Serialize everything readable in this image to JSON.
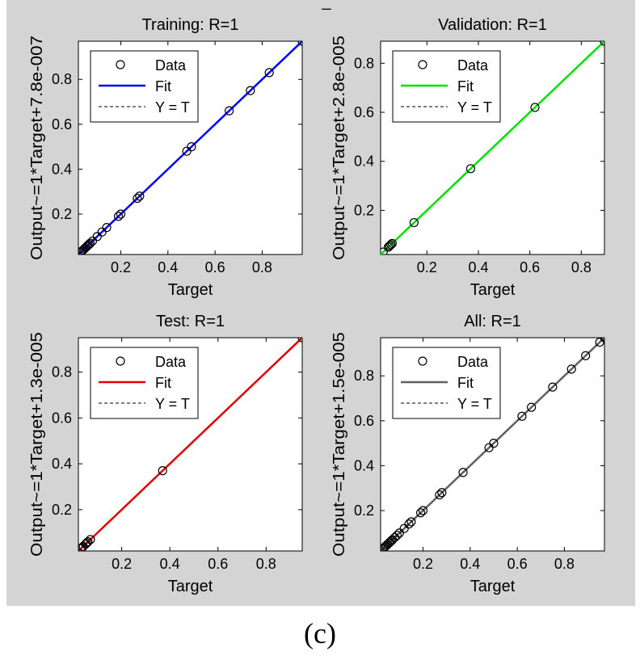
{
  "figure": {
    "caption": "(c)",
    "top_mark": "_",
    "colors": {
      "panel_bg": "#d4d4d4",
      "axes_bg": "#ffffff",
      "target_line": "#000000"
    }
  },
  "chart_data": [
    {
      "type": "scatter",
      "title": "Training: R=1",
      "xlabel": "Target",
      "ylabel": "Output~=1*Target+7.8e-007",
      "xlim": [
        0.02,
        0.97
      ],
      "ylim": [
        0.02,
        0.97
      ],
      "xticks": [
        0.2,
        0.4,
        0.6,
        0.8
      ],
      "yticks": [
        0.2,
        0.4,
        0.6,
        0.8
      ],
      "xtick_labels": [
        "0.2",
        "0.4",
        "0.6",
        "0.8"
      ],
      "ytick_labels": [
        "0.2",
        "0.4",
        "0.6",
        "0.8"
      ],
      "grid": false,
      "fit_color": "#0000ff",
      "fit": {
        "slope": 1,
        "intercept": 7.8e-07
      },
      "legend": {
        "placement": "top-left",
        "entries": [
          "Data",
          "Fit",
          "Y = T"
        ]
      },
      "x": [
        0.03,
        0.035,
        0.04,
        0.045,
        0.05,
        0.055,
        0.06,
        0.065,
        0.07,
        0.08,
        0.1,
        0.12,
        0.14,
        0.19,
        0.2,
        0.27,
        0.28,
        0.48,
        0.5,
        0.66,
        0.75,
        0.83,
        0.97
      ],
      "y": [
        0.03,
        0.035,
        0.04,
        0.045,
        0.05,
        0.055,
        0.06,
        0.065,
        0.07,
        0.08,
        0.1,
        0.12,
        0.14,
        0.19,
        0.2,
        0.27,
        0.28,
        0.48,
        0.5,
        0.66,
        0.75,
        0.83,
        0.97
      ]
    },
    {
      "type": "scatter",
      "title": "Validation: R=1",
      "xlabel": "Target",
      "ylabel": "Output~=1*Target+2.8e-005",
      "xlim": [
        0.02,
        0.89
      ],
      "ylim": [
        0.02,
        0.89
      ],
      "xticks": [
        0.2,
        0.4,
        0.6,
        0.8
      ],
      "yticks": [
        0.2,
        0.4,
        0.6,
        0.8
      ],
      "xtick_labels": [
        "0.2",
        "0.4",
        "0.6",
        "0.8"
      ],
      "ytick_labels": [
        "0.2",
        "0.4",
        "0.6",
        "0.8"
      ],
      "grid": false,
      "fit_color": "#00e000",
      "fit": {
        "slope": 1,
        "intercept": 2.8e-05
      },
      "legend": {
        "placement": "top-left",
        "entries": [
          "Data",
          "Fit",
          "Y = T"
        ]
      },
      "x": [
        0.03,
        0.05,
        0.055,
        0.06,
        0.065,
        0.15,
        0.37,
        0.62,
        0.89
      ],
      "y": [
        0.03,
        0.05,
        0.055,
        0.06,
        0.065,
        0.15,
        0.37,
        0.62,
        0.89
      ]
    },
    {
      "type": "scatter",
      "title": "Test: R=1",
      "xlabel": "Target",
      "ylabel": "Output~=1*Target+1.3e-005",
      "xlim": [
        0.02,
        0.95
      ],
      "ylim": [
        0.02,
        0.95
      ],
      "xticks": [
        0.2,
        0.4,
        0.6,
        0.8
      ],
      "yticks": [
        0.2,
        0.4,
        0.6,
        0.8
      ],
      "xtick_labels": [
        "0.2",
        "0.4",
        "0.6",
        "0.8"
      ],
      "ytick_labels": [
        "0.2",
        "0.4",
        "0.6",
        "0.8"
      ],
      "grid": false,
      "fit_color": "#e00000",
      "fit": {
        "slope": 1,
        "intercept": 1.3e-05
      },
      "legend": {
        "placement": "top-left",
        "entries": [
          "Data",
          "Fit",
          "Y = T"
        ]
      },
      "x": [
        0.03,
        0.035,
        0.04,
        0.05,
        0.055,
        0.06,
        0.07,
        0.37,
        0.95
      ],
      "y": [
        0.03,
        0.035,
        0.04,
        0.05,
        0.055,
        0.06,
        0.07,
        0.37,
        0.95
      ]
    },
    {
      "type": "scatter",
      "title": "All: R=1",
      "xlabel": "Target",
      "ylabel": "Output~=1*Target+1.5e-005",
      "xlim": [
        0.02,
        0.97
      ],
      "ylim": [
        0.02,
        0.97
      ],
      "xticks": [
        0.2,
        0.4,
        0.6,
        0.8
      ],
      "yticks": [
        0.2,
        0.4,
        0.6,
        0.8
      ],
      "xtick_labels": [
        "0.2",
        "0.4",
        "0.6",
        "0.8"
      ],
      "ytick_labels": [
        "0.2",
        "0.4",
        "0.6",
        "0.8"
      ],
      "grid": false,
      "fit_color": "#606060",
      "fit": {
        "slope": 1,
        "intercept": 1.5e-05
      },
      "legend": {
        "placement": "top-left",
        "entries": [
          "Data",
          "Fit",
          "Y = T"
        ]
      },
      "x": [
        0.03,
        0.035,
        0.04,
        0.045,
        0.05,
        0.055,
        0.06,
        0.065,
        0.07,
        0.08,
        0.09,
        0.1,
        0.12,
        0.14,
        0.15,
        0.19,
        0.2,
        0.27,
        0.28,
        0.37,
        0.48,
        0.5,
        0.62,
        0.66,
        0.75,
        0.83,
        0.89,
        0.95,
        0.97
      ],
      "y": [
        0.03,
        0.035,
        0.04,
        0.045,
        0.05,
        0.055,
        0.06,
        0.065,
        0.07,
        0.08,
        0.09,
        0.1,
        0.12,
        0.14,
        0.15,
        0.19,
        0.2,
        0.27,
        0.28,
        0.37,
        0.48,
        0.5,
        0.62,
        0.66,
        0.75,
        0.83,
        0.89,
        0.95,
        0.97
      ]
    }
  ]
}
